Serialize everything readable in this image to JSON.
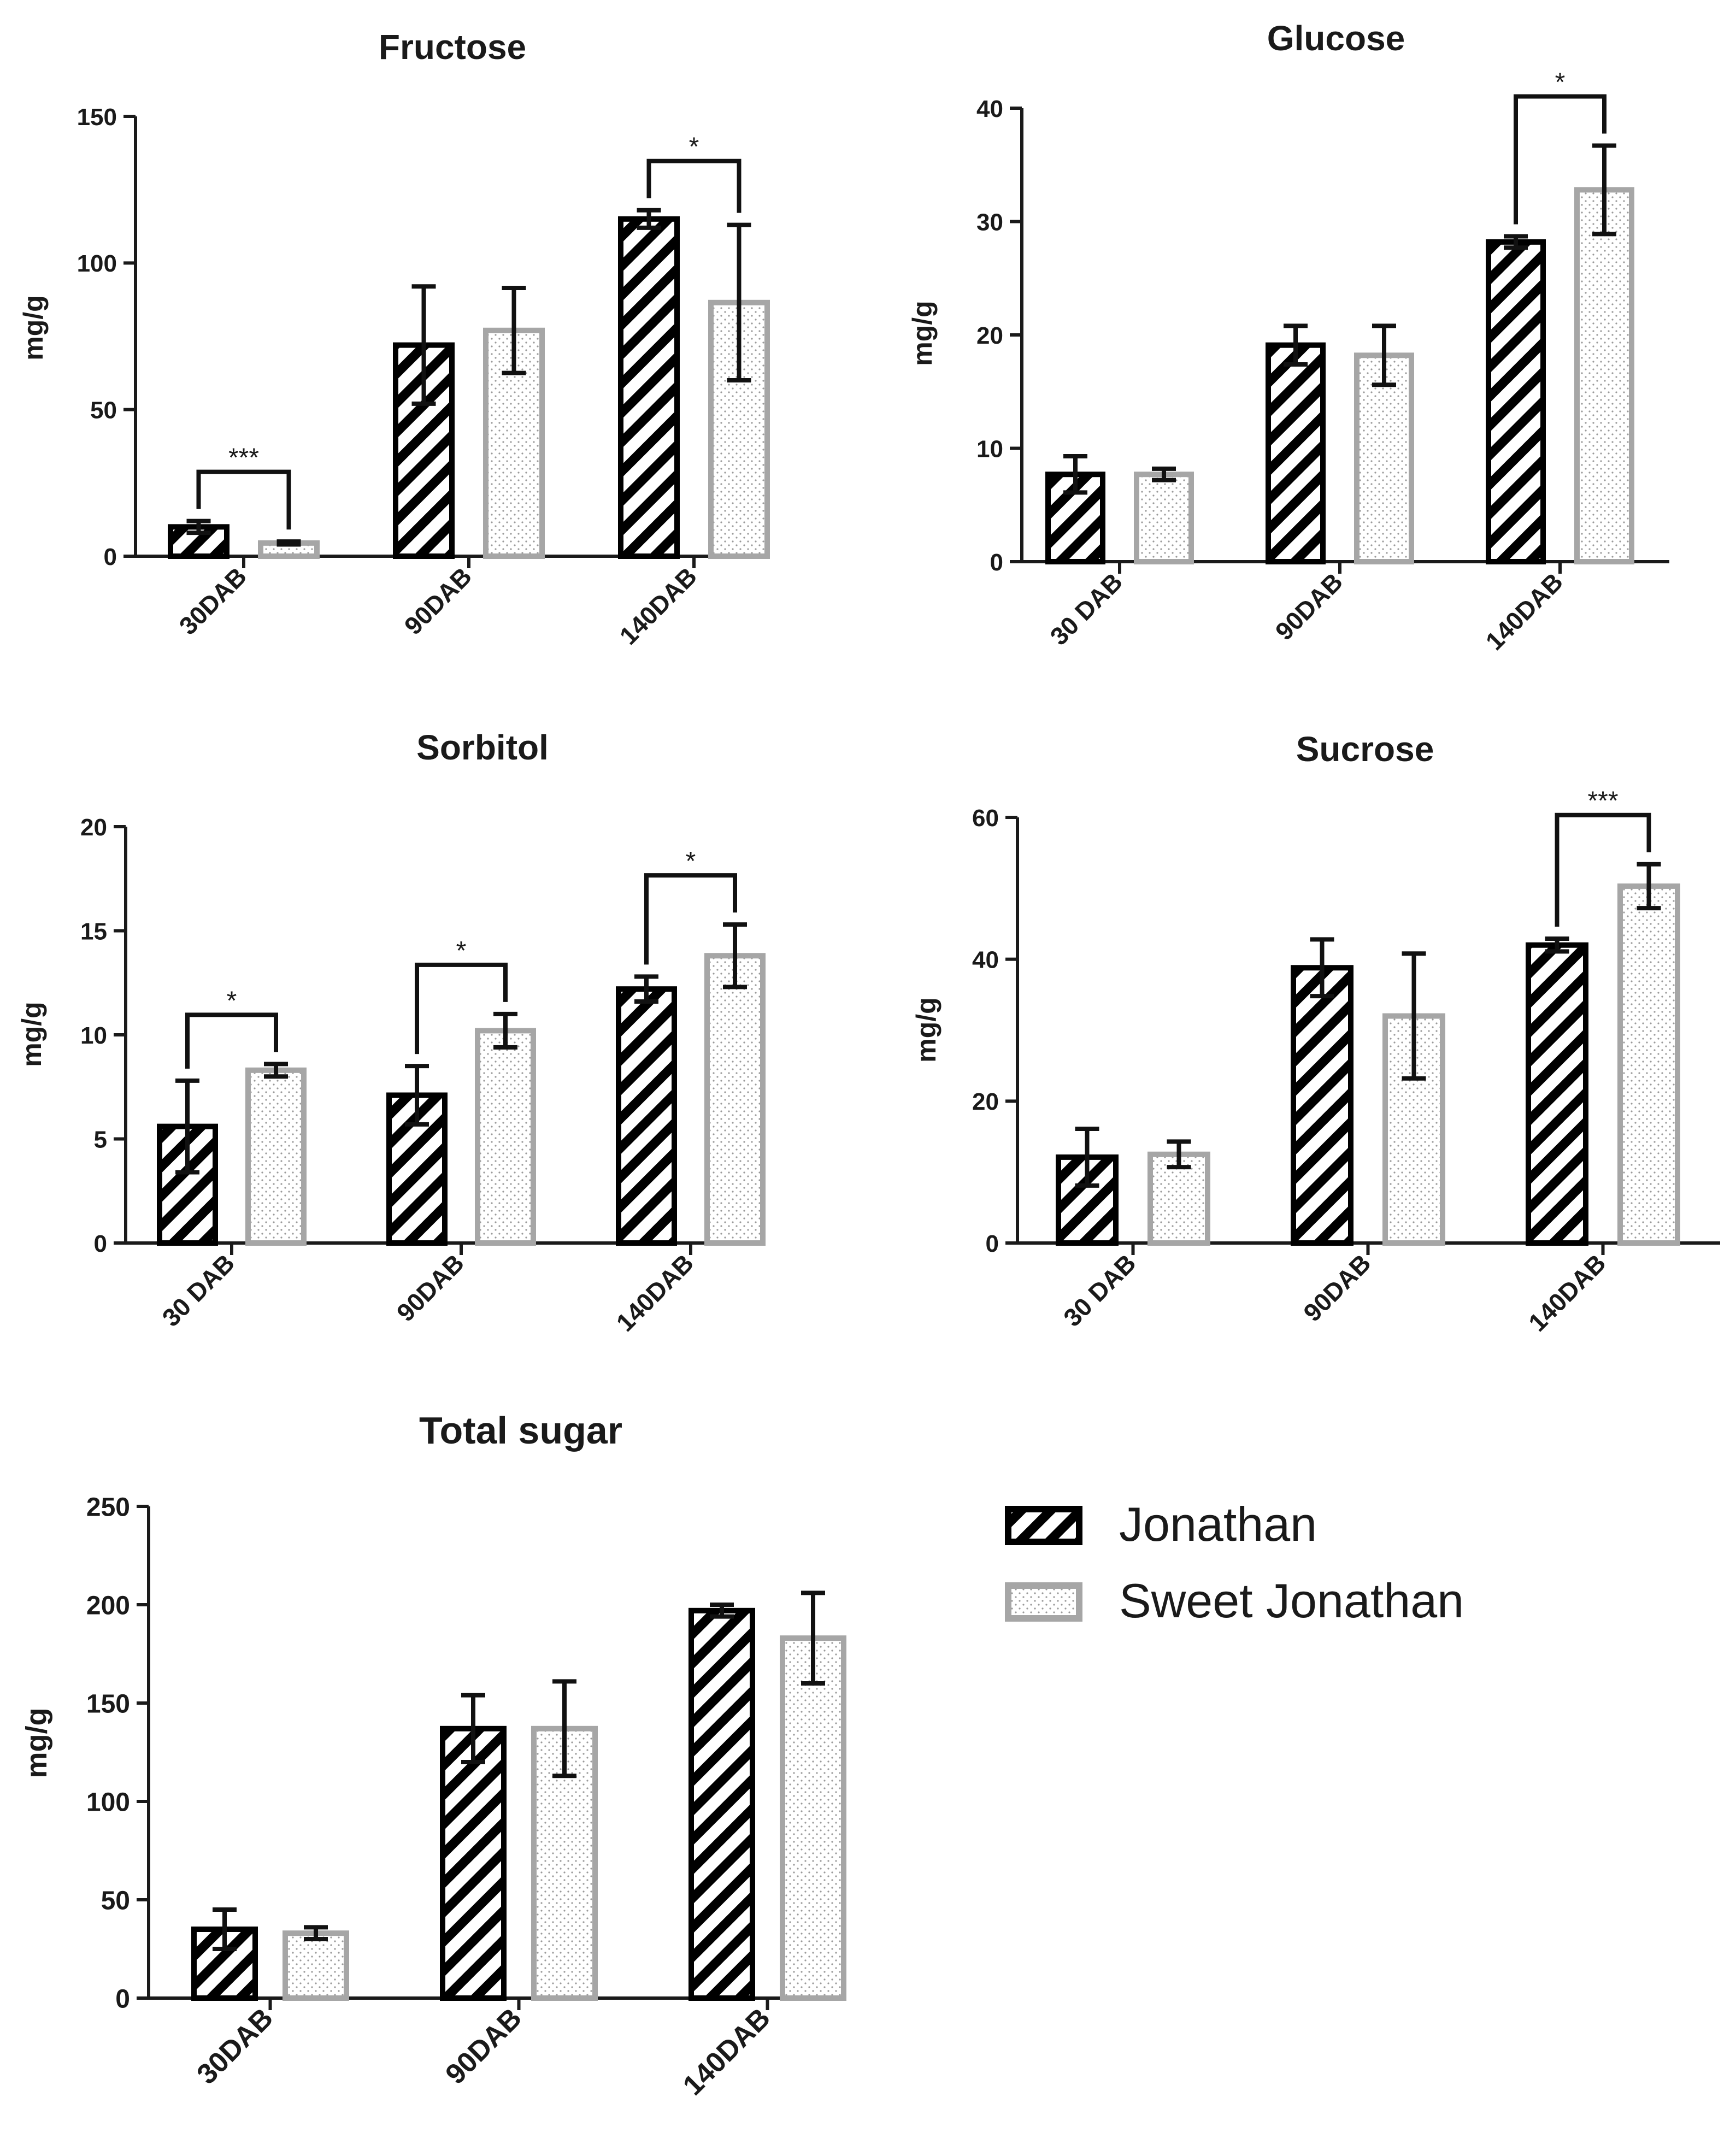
{
  "legend": {
    "series": [
      {
        "name": "Jonathan",
        "style": "hatched",
        "color": "#000000"
      },
      {
        "name": "Sweet Jonathan",
        "style": "dotted",
        "color": "#a6a6a6"
      }
    ]
  },
  "chart_data": [
    {
      "type": "bar",
      "title": "Fructose",
      "ylabel": "mg/g",
      "ylim": [
        0,
        150
      ],
      "yticks": [
        0,
        50,
        100,
        150
      ],
      "categories": [
        "30DAB",
        "90DAB",
        "140DAB"
      ],
      "series": [
        {
          "name": "Jonathan",
          "values": [
            10,
            72,
            115
          ],
          "errors": [
            2,
            20,
            3
          ]
        },
        {
          "name": "Sweet Jonathan",
          "values": [
            4.5,
            77,
            86.5
          ],
          "errors": [
            0.5,
            14.5,
            26.5
          ]
        }
      ],
      "significance": [
        {
          "category": "30DAB",
          "label": "***"
        },
        {
          "category": "140DAB",
          "label": "*"
        }
      ]
    },
    {
      "type": "bar",
      "title": "Glucose",
      "ylabel": "mg/g",
      "ylim": [
        0,
        40
      ],
      "yticks": [
        0,
        10,
        20,
        30,
        40
      ],
      "categories": [
        "30 DAB",
        "90DAB",
        "140DAB"
      ],
      "series": [
        {
          "name": "Jonathan",
          "values": [
            7.7,
            19.1,
            28.2
          ],
          "errors": [
            1.6,
            1.7,
            0.5
          ]
        },
        {
          "name": "Sweet Jonathan",
          "values": [
            7.7,
            18.2,
            32.8
          ],
          "errors": [
            0.5,
            2.6,
            3.9
          ]
        }
      ],
      "significance": [
        {
          "category": "140DAB",
          "label": "*"
        }
      ]
    },
    {
      "type": "bar",
      "title": "Sorbitol",
      "ylabel": "mg/g",
      "ylim": [
        0,
        20
      ],
      "yticks": [
        0,
        5,
        10,
        15,
        20
      ],
      "categories": [
        "30 DAB",
        "90DAB",
        "140DAB"
      ],
      "series": [
        {
          "name": "Jonathan",
          "values": [
            5.6,
            7.1,
            12.2
          ],
          "errors": [
            2.2,
            1.4,
            0.6
          ]
        },
        {
          "name": "Sweet Jonathan",
          "values": [
            8.3,
            10.2,
            13.8
          ],
          "errors": [
            0.3,
            0.8,
            1.5
          ]
        }
      ],
      "significance": [
        {
          "category": "30 DAB",
          "label": "*"
        },
        {
          "category": "90DAB",
          "label": "*"
        },
        {
          "category": "140DAB",
          "label": "*"
        }
      ]
    },
    {
      "type": "bar",
      "title": "Sucrose",
      "ylabel": "mg/g",
      "ylim": [
        0,
        60
      ],
      "yticks": [
        0,
        20,
        40,
        60
      ],
      "categories": [
        "30 DAB",
        "90DAB",
        "140DAB"
      ],
      "series": [
        {
          "name": "Jonathan",
          "values": [
            12.1,
            38.8,
            42.0
          ],
          "errors": [
            4.0,
            4.0,
            0.9
          ]
        },
        {
          "name": "Sweet Jonathan",
          "values": [
            12.5,
            32.0,
            50.3
          ],
          "errors": [
            1.8,
            8.8,
            3.1
          ]
        }
      ],
      "significance": [
        {
          "category": "140DAB",
          "label": "***"
        }
      ]
    },
    {
      "type": "bar",
      "title": "Total sugar",
      "ylabel": "mg/g",
      "ylim": [
        0,
        250
      ],
      "yticks": [
        0,
        50,
        100,
        150,
        200,
        250
      ],
      "categories": [
        "30DAB",
        "90DAB",
        "140DAB"
      ],
      "series": [
        {
          "name": "Jonathan",
          "values": [
            35,
            137,
            197
          ],
          "errors": [
            10,
            17,
            3
          ]
        },
        {
          "name": "Sweet Jonathan",
          "values": [
            33,
            137,
            183
          ],
          "errors": [
            3,
            24,
            23
          ]
        }
      ],
      "significance": []
    }
  ]
}
